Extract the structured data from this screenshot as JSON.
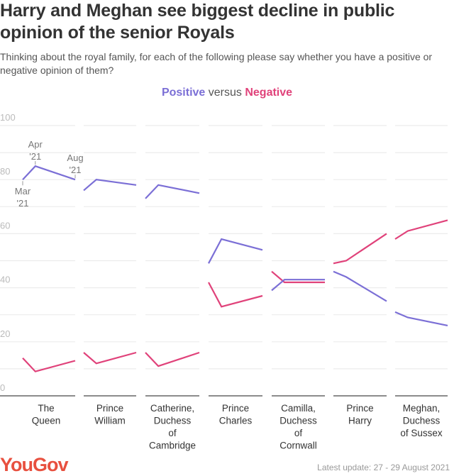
{
  "title": "Harry and Meghan see biggest decline in public opinion of the senior Royals",
  "subtitle": "Thinking about the royal family, for each of the following please say whether you have a positive or negative opinion of them?",
  "legend": {
    "positive": "Positive",
    "versus": "versus",
    "negative": "Negative"
  },
  "footer": {
    "logo": "YouGov",
    "update": "Latest update: 27 - 29 August 2021"
  },
  "chart_data": {
    "type": "line",
    "layout": "small-multiples",
    "ylim": [
      0,
      100
    ],
    "yticks": [
      "0",
      "20",
      "40",
      "60",
      "80",
      "100"
    ],
    "grid": true,
    "x": [
      "Mar '21",
      "Apr '21",
      "Aug '21"
    ],
    "x_annotations": [
      {
        "label": [
          "Mar",
          "'21"
        ]
      },
      {
        "label": [
          "Apr",
          "'21"
        ]
      },
      {
        "label": [
          "Aug",
          "'21"
        ]
      }
    ],
    "colors": {
      "positive": "#7b6fd6",
      "negative": "#e0427a"
    },
    "panels": [
      {
        "name": [
          "The",
          "Queen"
        ],
        "positive": [
          80,
          85,
          80
        ],
        "negative": [
          14,
          9,
          13
        ]
      },
      {
        "name": [
          "Prince",
          "William"
        ],
        "positive": [
          76,
          80,
          78
        ],
        "negative": [
          16,
          12,
          16
        ]
      },
      {
        "name": [
          "Catherine,",
          "Duchess",
          "of",
          "Cambridge"
        ],
        "positive": [
          73,
          78,
          75
        ],
        "negative": [
          16,
          11,
          16
        ]
      },
      {
        "name": [
          "Prince",
          "Charles"
        ],
        "positive": [
          49,
          58,
          54
        ],
        "negative": [
          42,
          33,
          37
        ]
      },
      {
        "name": [
          "Camilla,",
          "Duchess",
          "of",
          "Cornwall"
        ],
        "positive": [
          39,
          43,
          43
        ],
        "negative": [
          46,
          42,
          42
        ]
      },
      {
        "name": [
          "Prince",
          "Harry"
        ],
        "positive": [
          46,
          44,
          35
        ],
        "negative": [
          49,
          50,
          60
        ]
      },
      {
        "name": [
          "Meghan,",
          "Duchess",
          "of Sussex"
        ],
        "positive": [
          31,
          29,
          26
        ],
        "negative": [
          58,
          61,
          65
        ]
      }
    ]
  }
}
